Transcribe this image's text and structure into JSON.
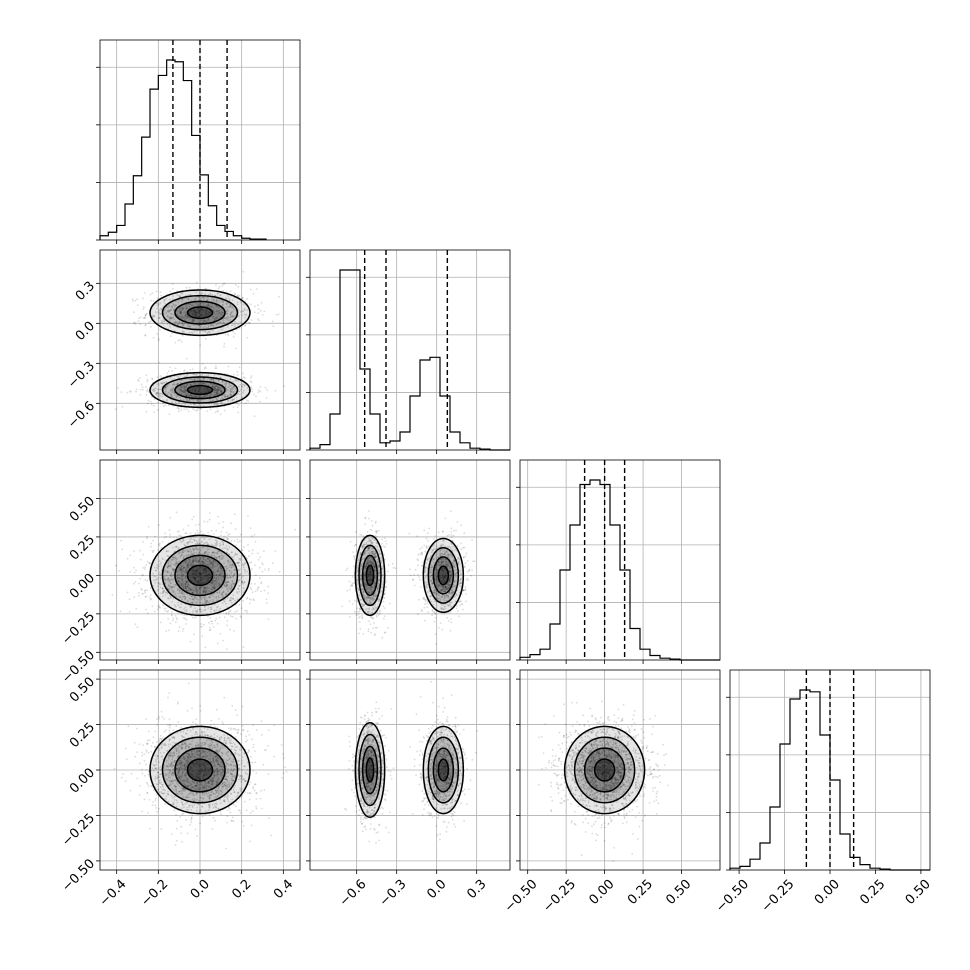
{
  "chart_data": {
    "type": "corner",
    "grid": true,
    "parameters": [
      {
        "index": 0,
        "range": [
          -0.48,
          0.48
        ],
        "ticks": [
          -0.4,
          -0.2,
          0.0,
          0.2,
          0.4
        ],
        "tick_labels": [
          "−0.4",
          "−0.2",
          "0.0",
          "0.2",
          "0.4"
        ],
        "quantiles": [
          -0.13,
          0.0,
          0.13
        ]
      },
      {
        "index": 1,
        "range": [
          -0.95,
          0.55
        ],
        "ticks": [
          -0.6,
          -0.3,
          0.0,
          0.3
        ],
        "tick_labels": [
          "−0.6",
          "−0.3",
          "0.0",
          "0.3"
        ],
        "quantiles": [
          -0.54,
          -0.38,
          0.08
        ]
      },
      {
        "index": 2,
        "range": [
          -0.55,
          0.75
        ],
        "ticks": [
          -0.5,
          -0.25,
          0.0,
          0.25,
          0.5
        ],
        "tick_labels": [
          "−0.50",
          "−0.25",
          "0.00",
          "0.25",
          "0.50"
        ],
        "quantiles": [
          -0.13,
          0.0,
          0.13
        ]
      },
      {
        "index": 3,
        "range": [
          -0.55,
          0.55
        ],
        "ticks": [
          -0.5,
          -0.25,
          0.0,
          0.25,
          0.5
        ],
        "tick_labels": [
          "−0.50",
          "−0.25",
          "0.00",
          "0.25",
          "0.50"
        ],
        "quantiles": [
          -0.13,
          0.0,
          0.13
        ]
      }
    ],
    "histograms": [
      {
        "param": 0,
        "bin_start": -0.48,
        "bin_width": 0.04,
        "counts": [
          5,
          9,
          17,
          42,
          75,
          120,
          176,
          192,
          210,
          208,
          186,
          122,
          76,
          40,
          17,
          10,
          5,
          2,
          1,
          1
        ]
      },
      {
        "param": 1,
        "bin_start": -0.95,
        "bin_width": 0.075,
        "counts": [
          2,
          6,
          40,
          200,
          200,
          90,
          40,
          8,
          10,
          20,
          60,
          100,
          103,
          60,
          20,
          8,
          2,
          1,
          0,
          0
        ]
      },
      {
        "param": 2,
        "bin_start": -0.55,
        "bin_width": 0.065,
        "counts": [
          3,
          6,
          12,
          40,
          100,
          150,
          195,
          200,
          195,
          150,
          100,
          35,
          12,
          5,
          2,
          1,
          0,
          0,
          0,
          0
        ]
      },
      {
        "param": 3,
        "bin_start": -0.55,
        "bin_width": 0.055,
        "counts": [
          2,
          4,
          12,
          30,
          70,
          140,
          190,
          200,
          198,
          150,
          100,
          40,
          14,
          6,
          2,
          1,
          0,
          0,
          0,
          0
        ]
      }
    ],
    "joint": [
      {
        "x_param": 0,
        "y_param": 1,
        "clusters": [
          {
            "cx": 0.0,
            "cy": 0.08,
            "sx": 0.12,
            "sy": 0.085,
            "weight": 0.5
          },
          {
            "cx": 0.0,
            "cy": -0.5,
            "sx": 0.12,
            "sy": 0.065,
            "weight": 0.5
          }
        ]
      },
      {
        "x_param": 0,
        "y_param": 2,
        "clusters": [
          {
            "cx": 0.0,
            "cy": 0.0,
            "sx": 0.12,
            "sy": 0.13,
            "weight": 1.0
          }
        ]
      },
      {
        "x_param": 1,
        "y_param": 2,
        "clusters": [
          {
            "cx": -0.5,
            "cy": 0.0,
            "sx": 0.055,
            "sy": 0.13,
            "weight": 0.5
          },
          {
            "cx": 0.05,
            "cy": 0.0,
            "sx": 0.075,
            "sy": 0.12,
            "weight": 0.5
          }
        ]
      },
      {
        "x_param": 0,
        "y_param": 3,
        "clusters": [
          {
            "cx": 0.0,
            "cy": 0.0,
            "sx": 0.12,
            "sy": 0.12,
            "weight": 1.0
          }
        ]
      },
      {
        "x_param": 1,
        "y_param": 3,
        "clusters": [
          {
            "cx": -0.5,
            "cy": 0.0,
            "sx": 0.055,
            "sy": 0.13,
            "weight": 0.5
          },
          {
            "cx": 0.05,
            "cy": 0.0,
            "sx": 0.075,
            "sy": 0.12,
            "weight": 0.5
          }
        ]
      },
      {
        "x_param": 2,
        "y_param": 3,
        "clusters": [
          {
            "cx": 0.0,
            "cy": 0.0,
            "sx": 0.13,
            "sy": 0.12,
            "weight": 1.0
          }
        ]
      }
    ],
    "contour_levels_sigma": [
      0.5,
      1.0,
      1.5,
      2.0
    ]
  }
}
